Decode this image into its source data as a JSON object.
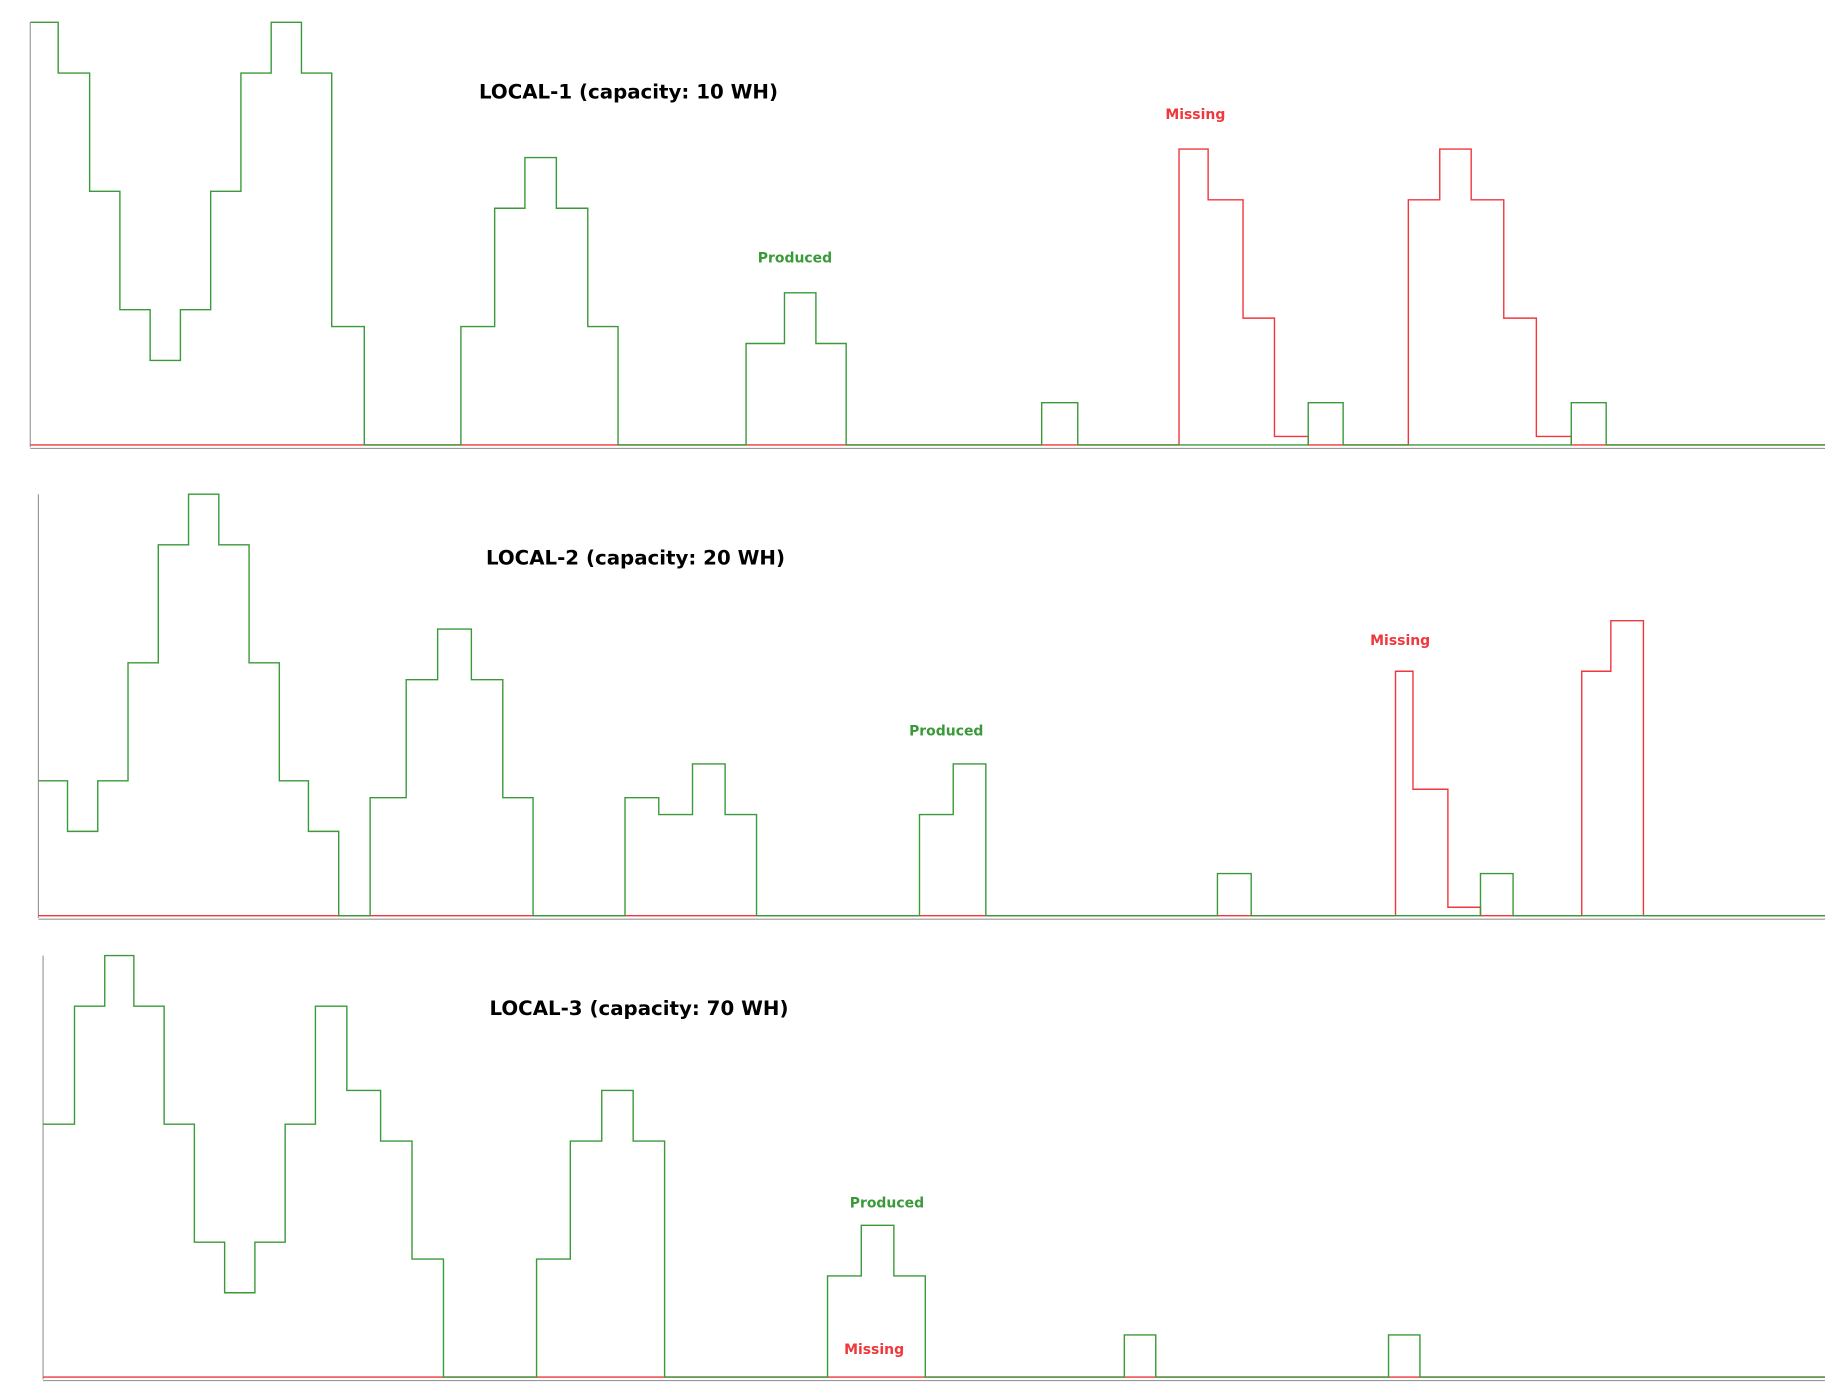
{
  "chart_data": [
    {
      "type": "step",
      "title": "LOCAL-1 (capacity: 10 WH)",
      "xlim": [
        0,
        1542
      ],
      "ylim": [
        0,
        10
      ],
      "series": [
        {
          "name": "Produced",
          "color": "#3a9a3a",
          "x": [
            0,
            24,
            51,
            77,
            103,
            129,
            155,
            181,
            207,
            233,
            259,
            287,
            370,
            399,
            425,
            452,
            479,
            505,
            615,
            648,
            675,
            701,
            869,
            900,
            1098,
            1128,
            1324,
            1354
          ],
          "values": [
            10.0,
            8.8,
            6.0,
            3.2,
            2.0,
            3.2,
            6.0,
            8.8,
            10.0,
            8.8,
            2.8,
            0,
            2.8,
            5.6,
            6.8,
            5.6,
            2.8,
            0,
            2.4,
            3.6,
            2.4,
            0,
            1.0,
            0,
            1.0,
            0,
            1.0,
            0
          ]
        },
        {
          "name": "Missing",
          "color": "#f0373c",
          "x": [
            0,
            987,
            1012,
            1042,
            1069,
            1098,
            1184,
            1211,
            1238,
            1266,
            1294,
            1324
          ],
          "values": [
            0,
            7.0,
            5.8,
            3.0,
            0.2,
            0,
            5.8,
            7.0,
            5.8,
            3.0,
            0.2,
            0
          ]
        }
      ]
    },
    {
      "type": "step",
      "title": "LOCAL-2 (capacity: 20 WH)",
      "xlim": [
        0,
        1535
      ],
      "ylim": [
        0,
        10
      ],
      "series": [
        {
          "name": "Produced",
          "color": "#3a9a3a",
          "x": [
            0,
            25,
            51,
            77,
            103,
            129,
            155,
            181,
            207,
            232,
            258,
            285,
            316,
            343,
            372,
            399,
            425,
            504,
            533,
            562,
            590,
            617,
            757,
            786,
            814,
            1013,
            1042,
            1239,
            1267
          ],
          "values": [
            3.2,
            2.0,
            3.2,
            6.0,
            8.8,
            10.0,
            8.8,
            6.0,
            3.2,
            2.0,
            0,
            2.8,
            5.6,
            6.8,
            5.6,
            2.8,
            0,
            2.8,
            2.4,
            3.6,
            2.4,
            0,
            2.4,
            3.6,
            0,
            1.0,
            0,
            1.0,
            0
          ]
        },
        {
          "name": "Missing",
          "color": "#f0373c",
          "x": [
            0,
            1166,
            1181,
            1211,
            1239,
            1326,
            1351,
            1379
          ],
          "values": [
            0,
            5.8,
            3.0,
            0.2,
            0,
            5.8,
            7.0,
            0
          ]
        }
      ]
    },
    {
      "type": "step",
      "title": "LOCAL-3 (capacity: 70 WH)",
      "xlim": [
        0,
        1531
      ],
      "ylim": [
        0,
        10
      ],
      "series": [
        {
          "name": "Produced",
          "color": "#3a9a3a",
          "x": [
            0,
            27,
            53,
            78,
            104,
            130,
            156,
            182,
            208,
            234,
            261,
            290,
            317,
            344,
            424,
            453,
            480,
            507,
            534,
            674,
            703,
            731,
            758,
            929,
            956,
            1156,
            1183
          ],
          "values": [
            6.0,
            8.8,
            10.0,
            8.8,
            6.0,
            3.2,
            2.0,
            3.2,
            6.0,
            8.8,
            6.8,
            5.6,
            2.8,
            0,
            2.8,
            5.6,
            6.8,
            5.6,
            0,
            2.4,
            3.6,
            2.4,
            0,
            1.0,
            0,
            1.0,
            0
          ]
        },
        {
          "name": "Missing",
          "color": "#f0373c",
          "x": [
            0
          ],
          "values": [
            0
          ]
        }
      ]
    }
  ]
}
